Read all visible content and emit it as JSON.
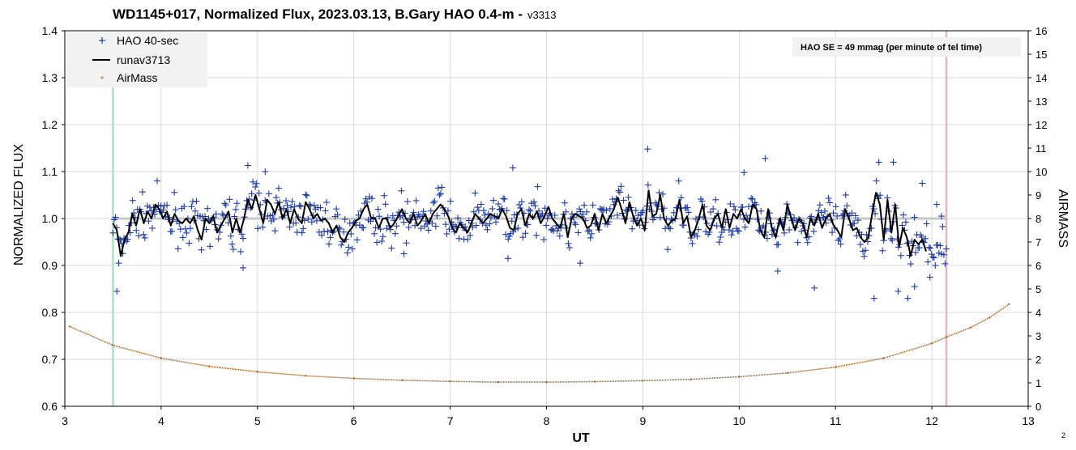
{
  "chart_data": {
    "type": "scatter",
    "title": "WD1145+017, Normalized Flux, 2023.03.13, B.Gary HAO 0.4-m -",
    "title_version": "v3313",
    "xlabel": "UT",
    "ylabel": "NORMALIZED FLUX",
    "y2label": "AIRMASS",
    "xlim": [
      3,
      13
    ],
    "ylim": [
      0.6,
      1.4
    ],
    "y2lim": [
      0,
      16
    ],
    "x_ticks": [
      "3",
      "4",
      "5",
      "6",
      "7",
      "8",
      "9",
      "10",
      "11",
      "12",
      "13"
    ],
    "y_ticks": [
      "0.6",
      "0.7",
      "0.8",
      "0.9",
      "1.0",
      "1.1",
      "1.2",
      "1.3",
      "1.4"
    ],
    "y2_ticks": [
      "0",
      "1",
      "2",
      "3",
      "4",
      "5",
      "6",
      "7",
      "8",
      "9",
      "10",
      "11",
      "12",
      "13",
      "14",
      "15",
      "16"
    ],
    "grid": true,
    "legend_position": "top-left",
    "legend": [
      "HAO 40-sec",
      "runav3713",
      "AirMass"
    ],
    "annotation": "HAO SE =  49 mmag (per minute of tel time)",
    "corner_label": "2",
    "reference_level": 1.0,
    "start_marker_ut": 3.5,
    "end_marker_ut": 12.15,
    "flux_series": {
      "name": "HAO 40-sec",
      "ut_start": 3.5,
      "ut_end": 12.15,
      "point_count": 680,
      "typical_scatter": 0.035,
      "outliers": [
        {
          "x": 3.54,
          "y": 0.845
        },
        {
          "x": 3.56,
          "y": 0.905
        },
        {
          "x": 4.85,
          "y": 0.895
        },
        {
          "x": 4.9,
          "y": 1.113
        },
        {
          "x": 5.08,
          "y": 1.1
        },
        {
          "x": 9.05,
          "y": 1.148
        },
        {
          "x": 10.05,
          "y": 1.098
        },
        {
          "x": 10.27,
          "y": 1.128
        },
        {
          "x": 10.4,
          "y": 0.888
        },
        {
          "x": 10.78,
          "y": 0.852
        },
        {
          "x": 11.4,
          "y": 0.83
        },
        {
          "x": 11.45,
          "y": 1.12
        },
        {
          "x": 11.6,
          "y": 1.12
        },
        {
          "x": 11.65,
          "y": 0.845
        },
        {
          "x": 11.75,
          "y": 0.83
        },
        {
          "x": 11.82,
          "y": 0.855
        },
        {
          "x": 11.9,
          "y": 1.075
        },
        {
          "x": 11.98,
          "y": 0.875
        },
        {
          "x": 12.05,
          "y": 1.03
        },
        {
          "x": 12.1,
          "y": 1.005
        },
        {
          "x": 7.65,
          "y": 1.108
        },
        {
          "x": 7.6,
          "y": 0.915
        },
        {
          "x": 6.52,
          "y": 0.925
        },
        {
          "x": 8.35,
          "y": 0.905
        }
      ]
    },
    "runav_series": {
      "name": "runav3713",
      "x": [
        3.5,
        3.54,
        3.58,
        3.62,
        3.66,
        3.7,
        3.74,
        3.78,
        3.82,
        3.86,
        3.9,
        3.94,
        3.98,
        4.02,
        4.06,
        4.1,
        4.14,
        4.18,
        4.22,
        4.26,
        4.3,
        4.34,
        4.38,
        4.42,
        4.46,
        4.5,
        4.54,
        4.58,
        4.62,
        4.66,
        4.7,
        4.74,
        4.78,
        4.82,
        4.86,
        4.9,
        4.94,
        4.98,
        5.02,
        5.06,
        5.1,
        5.14,
        5.18,
        5.22,
        5.26,
        5.3,
        5.34,
        5.38,
        5.42,
        5.46,
        5.5,
        5.54,
        5.58,
        5.62,
        5.66,
        5.7,
        5.74,
        5.78,
        5.82,
        5.86,
        5.9,
        5.94,
        5.98,
        6.02,
        6.06,
        6.1,
        6.14,
        6.18,
        6.22,
        6.26,
        6.3,
        6.34,
        6.38,
        6.42,
        6.46,
        6.5,
        6.54,
        6.58,
        6.62,
        6.66,
        6.7,
        6.74,
        6.78,
        6.82,
        6.86,
        6.9,
        6.94,
        6.98,
        7.02,
        7.06,
        7.1,
        7.14,
        7.18,
        7.22,
        7.26,
        7.3,
        7.34,
        7.38,
        7.42,
        7.46,
        7.5,
        7.54,
        7.58,
        7.62,
        7.66,
        7.7,
        7.74,
        7.78,
        7.82,
        7.86,
        7.9,
        7.94,
        7.98,
        8.02,
        8.06,
        8.1,
        8.14,
        8.18,
        8.22,
        8.26,
        8.3,
        8.34,
        8.38,
        8.42,
        8.46,
        8.5,
        8.54,
        8.58,
        8.62,
        8.66,
        8.7,
        8.74,
        8.78,
        8.82,
        8.86,
        8.9,
        8.94,
        8.98,
        9.02,
        9.06,
        9.1,
        9.14,
        9.18,
        9.22,
        9.26,
        9.3,
        9.34,
        9.38,
        9.42,
        9.46,
        9.5,
        9.54,
        9.58,
        9.62,
        9.66,
        9.7,
        9.74,
        9.78,
        9.82,
        9.86,
        9.9,
        9.94,
        9.98,
        10.02,
        10.06,
        10.1,
        10.14,
        10.18,
        10.22,
        10.26,
        10.3,
        10.34,
        10.38,
        10.42,
        10.46,
        10.5,
        10.54,
        10.58,
        10.62,
        10.66,
        10.7,
        10.74,
        10.78,
        10.82,
        10.86,
        10.9,
        10.94,
        10.98,
        11.02,
        11.06,
        11.1,
        11.14,
        11.18,
        11.22,
        11.26,
        11.3,
        11.34,
        11.38,
        11.42,
        11.46,
        11.5,
        11.54,
        11.58,
        11.62,
        11.66,
        11.7,
        11.74,
        11.78,
        11.82,
        11.86,
        11.9,
        11.94
      ],
      "y": [
        0.99,
        0.975,
        0.92,
        0.955,
        0.97,
        1.01,
        0.985,
        1.02,
        0.99,
        1.015,
        1.0,
        1.03,
        1.02,
        1.0,
        1.015,
        0.985,
        1.01,
        0.995,
        0.99,
        1.0,
        0.99,
        1.005,
        0.975,
        0.955,
        1.0,
        0.99,
        1.005,
        0.97,
        0.985,
        1.0,
        1.015,
        0.97,
        1.0,
        0.97,
        1.0,
        1.04,
        1.02,
        1.05,
        1.02,
        0.99,
        1.04,
        1.03,
        1.01,
        1.035,
        1.0,
        1.02,
        0.99,
        1.02,
        1.0,
        0.99,
        1.035,
        1.02,
        1.0,
        1.01,
        0.995,
        1.0,
        0.99,
        0.97,
        0.985,
        0.96,
        0.95,
        0.97,
        0.98,
        0.995,
        1.0,
        1.02,
        1.03,
        1.0,
        1.0,
        0.98,
        1.0,
        1.0,
        0.98,
        0.99,
        1.005,
        1.02,
        1.0,
        0.99,
        1.01,
        0.985,
        0.995,
        1.01,
        0.99,
        1.01,
        1.02,
        1.03,
        1.02,
        1.005,
        0.98,
        0.97,
        0.99,
        0.98,
        0.97,
        0.99,
        1.01,
        1.0,
        0.99,
        1.0,
        1.01,
        1.005,
        1.0,
        1.02,
        1.005,
        0.98,
        0.975,
        1.01,
        1.02,
        0.985,
        1.01,
        1.0,
        1.015,
        0.99,
        1.005,
        1.025,
        1.0,
        0.99,
        0.98,
        1.01,
        0.96,
        1.0,
        1.01,
        1.005,
        1.0,
        0.98,
        0.985,
        1.01,
        0.975,
        1.01,
        0.99,
        1.005,
        1.02,
        1.045,
        1.02,
        0.99,
        1.035,
        1.005,
        0.985,
        1.0,
        0.975,
        1.06,
        1.005,
        1.01,
        1.05,
        1.0,
        0.985,
        0.995,
        1.0,
        1.04,
        0.99,
        1.005,
        0.96,
        0.975,
        1.0,
        1.03,
        0.985,
        0.975,
        1.0,
        1.01,
        0.98,
        1.02,
        0.98,
        1.01,
        1.0,
        1.02,
        1.0,
        0.99,
        1.03,
        1.02,
        0.975,
        0.96,
        1.02,
        0.98,
        0.96,
        1.0,
        0.975,
        1.03,
        1.0,
        0.975,
        1.0,
        0.99,
        0.96,
        1.0,
        0.985,
        1.01,
        0.98,
        1.0,
        1.01,
        0.985,
        0.975,
        0.96,
        1.02,
        1.0,
        0.975,
        0.98,
        0.96,
        0.95,
        0.96,
        1.01,
        1.055,
        1.03,
        0.955,
        1.04,
        0.97,
        1.03,
        0.94,
        0.98,
        0.96,
        0.92,
        0.955,
        0.945,
        0.955,
        0.93
      ],
      "color": "#000000"
    },
    "airmass_series": {
      "name": "AirMass",
      "formula": "secant of zenith angle, minimum 1.02 near UT 7.6",
      "ut_start": 3.05,
      "ut_end": 12.8,
      "x": [
        3.05,
        3.5,
        4.0,
        4.5,
        5.0,
        5.5,
        6.0,
        6.5,
        7.0,
        7.5,
        8.0,
        8.5,
        9.0,
        9.5,
        10.0,
        10.5,
        11.0,
        11.5,
        12.0,
        12.15,
        12.4,
        12.6,
        12.8
      ],
      "y": [
        3.4,
        2.6,
        2.05,
        1.7,
        1.47,
        1.3,
        1.19,
        1.11,
        1.06,
        1.03,
        1.03,
        1.05,
        1.09,
        1.15,
        1.26,
        1.42,
        1.67,
        2.05,
        2.68,
        2.95,
        3.35,
        3.78,
        4.35
      ],
      "color": "#a86a28"
    },
    "colors": {
      "flux_points": "#1f3c9e",
      "runav": "#000000",
      "airmass": "#a86a28",
      "start_marker": "#b6dcc4",
      "end_marker": "#e6b8bb",
      "reference": "#c8c8c8",
      "grid": "#d9d9d9",
      "legend_bg": "#f2f2f2",
      "anno_bg": "#f2f2f2"
    }
  }
}
